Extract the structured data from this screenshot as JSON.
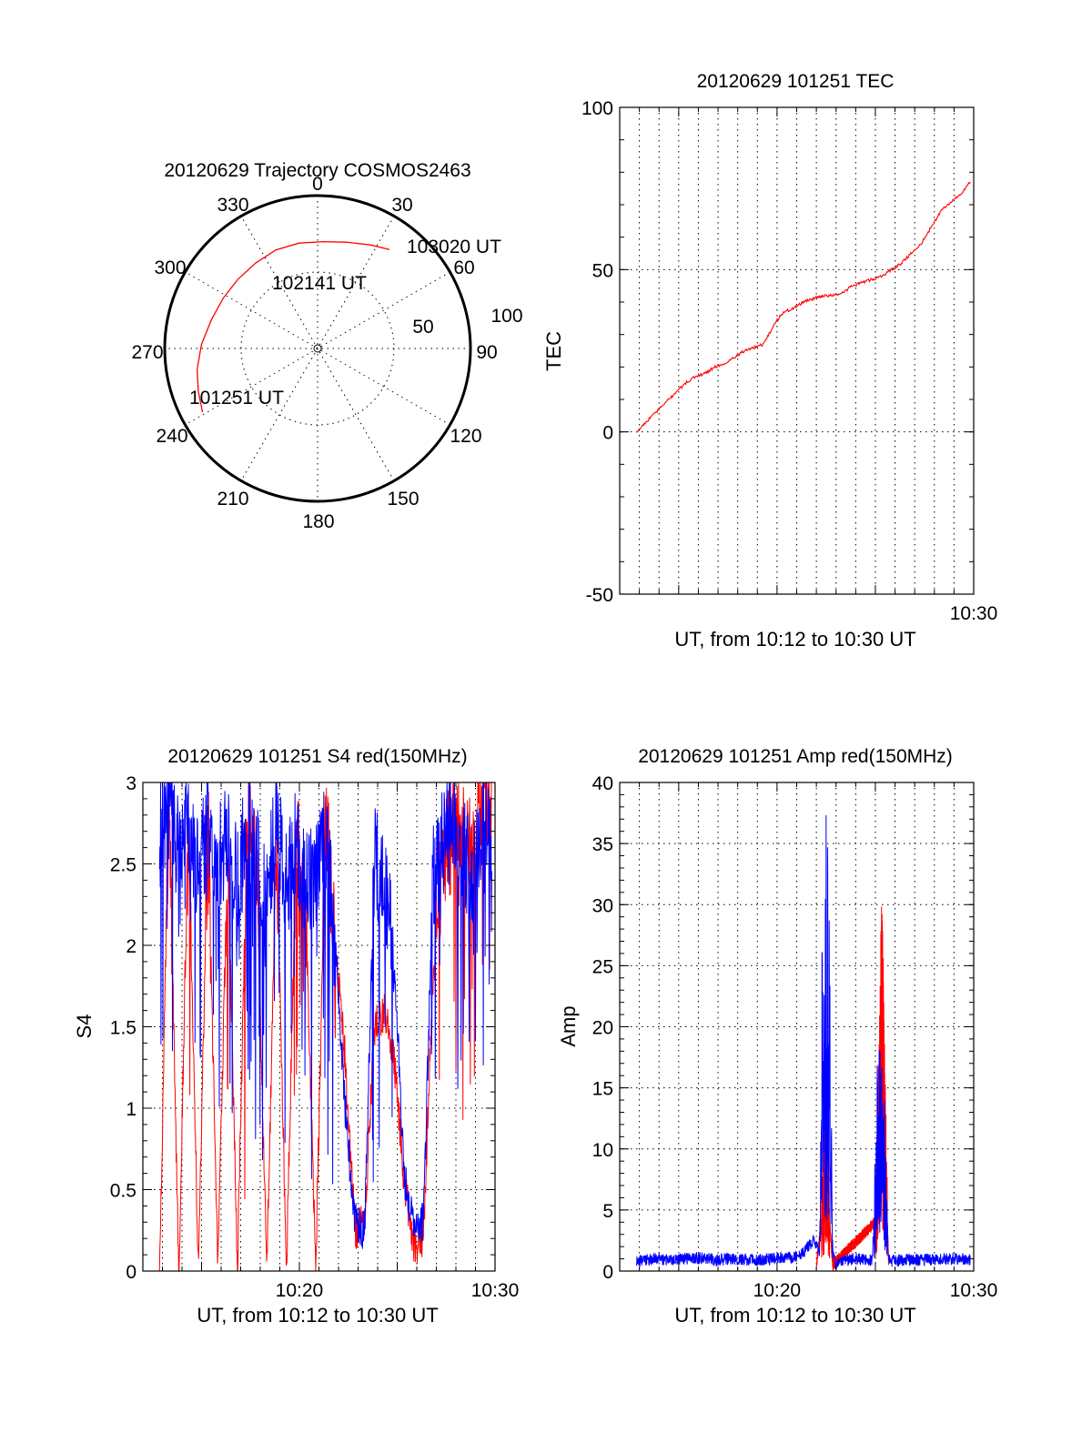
{
  "chart_data": [
    {
      "type": "polar",
      "title": "20120629 Trajectory COSMOS2463",
      "angle_labels": [
        "0",
        "30",
        "60",
        "90",
        "120",
        "150",
        "180",
        "210",
        "240",
        "270",
        "300",
        "330"
      ],
      "radial_labels": [
        "50",
        "100"
      ],
      "radial_max": 100,
      "grid": true,
      "series": [
        {
          "color": "#ff0000",
          "points": [
            {
              "azimuth": 241,
              "radius": 86
            },
            {
              "azimuth": 250,
              "radius": 83
            },
            {
              "azimuth": 260,
              "radius": 80
            },
            {
              "azimuth": 272,
              "radius": 76
            },
            {
              "azimuth": 285,
              "radius": 72
            },
            {
              "azimuth": 298,
              "radius": 70
            },
            {
              "azimuth": 311,
              "radius": 69
            },
            {
              "azimuth": 324,
              "radius": 69
            },
            {
              "azimuth": 337,
              "radius": 70
            },
            {
              "azimuth": 350,
              "radius": 70
            },
            {
              "azimuth": 3,
              "radius": 70
            },
            {
              "azimuth": 15,
              "radius": 72
            },
            {
              "azimuth": 27,
              "radius": 76
            },
            {
              "azimuth": 36,
              "radius": 80
            }
          ]
        }
      ],
      "annotations": [
        {
          "text": "101251 UT",
          "azimuth": 241,
          "radius": 86
        },
        {
          "text": "102141 UT",
          "azimuth": 318,
          "radius": 69
        },
        {
          "text": "103020 UT",
          "azimuth": 36,
          "radius": 80
        }
      ]
    },
    {
      "type": "line",
      "title": "20120629 101251 TEC",
      "xlabel": "UT, from 10:12 to 10:30 UT",
      "ylabel": "TEC",
      "xlim": [
        10.2,
        10.5
      ],
      "ylim": [
        -50,
        100
      ],
      "x_tick_labels": [
        {
          "x": 10.5,
          "label": "10:30"
        }
      ],
      "y_ticks": [
        -50,
        0,
        50,
        100
      ],
      "grid": true,
      "series": [
        {
          "color": "#ff0000",
          "x": [
            10.2142,
            10.2222,
            10.2306,
            10.2389,
            10.2472,
            10.2556,
            10.2639,
            10.2722,
            10.2806,
            10.2889,
            10.2972,
            10.3056,
            10.3139,
            10.3222,
            10.3306,
            10.3389,
            10.3472,
            10.3556,
            10.3639,
            10.3722,
            10.3806,
            10.3889,
            10.3972,
            10.4056,
            10.4139,
            10.4222,
            10.4306,
            10.4389,
            10.4472,
            10.4556,
            10.4639,
            10.4722,
            10.4806,
            10.4889,
            10.4972
          ],
          "y": [
            0,
            3,
            6,
            9,
            12,
            15,
            17,
            18,
            20,
            21,
            23,
            25,
            26,
            27,
            33,
            37,
            38,
            40,
            41,
            42,
            42,
            43,
            45,
            46,
            47,
            48,
            50,
            52,
            55,
            58,
            63,
            68,
            71,
            73,
            77
          ]
        }
      ]
    },
    {
      "type": "line",
      "title": "20120629 101251 S4 red(150MHz)",
      "xlabel": "UT, from 10:12 to 10:30 UT",
      "ylabel": "S4",
      "xlim": [
        10.2,
        10.5
      ],
      "ylim": [
        0,
        3
      ],
      "x_tick_labels": [
        {
          "x": 10.3333,
          "label": "10:20"
        },
        {
          "x": 10.5,
          "label": "10:30"
        }
      ],
      "y_ticks": [
        0,
        0.5,
        1,
        1.5,
        2,
        2.5,
        3
      ],
      "y_tick_labels": [
        "0",
        "0.5",
        "1",
        "1.5",
        "2",
        "2.5",
        "3"
      ],
      "grid": true,
      "series": [
        {
          "color": "#ff0000",
          "x": [
            10.2142,
            10.2222,
            10.2306,
            10.2389,
            10.2472,
            10.2556,
            10.2639,
            10.2722,
            10.2806,
            10.2889,
            10.2972,
            10.3056,
            10.3139,
            10.3222,
            10.3306,
            10.3389,
            10.3472,
            10.3556,
            10.3639,
            10.3722,
            10.3806,
            10.3889,
            10.3972,
            10.4056,
            10.4139,
            10.4222,
            10.4306,
            10.4389,
            10.4472,
            10.4556,
            10.4639,
            10.4722,
            10.4806,
            10.4889,
            10.4972
          ],
          "y": [
            0,
            2.9,
            0,
            2.8,
            0,
            2.7,
            0,
            2.6,
            0,
            2.8,
            2.4,
            0,
            2.7,
            0,
            2.6,
            2.2,
            0,
            2.7,
            2.0,
            1.3,
            0.25,
            0.3,
            1.5,
            1.6,
            1.3,
            0.6,
            0.15,
            0.2,
            1.8,
            2.5,
            2.8,
            2.6,
            2.5,
            2.9,
            2.8
          ]
        },
        {
          "color": "#0000ff",
          "x": [
            10.2142,
            10.2222,
            10.2306,
            10.2389,
            10.2472,
            10.2556,
            10.2639,
            10.2722,
            10.2806,
            10.2889,
            10.2972,
            10.3056,
            10.3139,
            10.3222,
            10.3306,
            10.3389,
            10.3472,
            10.3556,
            10.3639,
            10.3722,
            10.3806,
            10.3889,
            10.3972,
            10.4056,
            10.4139,
            10.4222,
            10.4306,
            10.4389,
            10.4472,
            10.4556,
            10.4639,
            10.4722,
            10.4806,
            10.4889,
            10.4972
          ],
          "y": [
            2.6,
            2.8,
            2.5,
            2.7,
            2.4,
            2.7,
            2.5,
            2.6,
            2.3,
            2.7,
            2.5,
            2.2,
            2.8,
            2.3,
            2.6,
            2.3,
            2.4,
            2.6,
            2.0,
            1.0,
            0.3,
            0.25,
            2.5,
            2.3,
            2.0,
            0.6,
            0.3,
            0.3,
            2.4,
            2.6,
            2.7,
            2.5,
            2.4,
            2.7,
            2.6
          ]
        }
      ]
    },
    {
      "type": "line",
      "title": "20120629 101251 Amp red(150MHz)",
      "xlabel": "UT, from 10:12 to 10:30 UT",
      "ylabel": "Amp",
      "xlim": [
        10.2,
        10.5
      ],
      "ylim": [
        0,
        40
      ],
      "x_tick_labels": [
        {
          "x": 10.3333,
          "label": "10:20"
        },
        {
          "x": 10.5,
          "label": "10:30"
        }
      ],
      "y_ticks": [
        0,
        5,
        10,
        15,
        20,
        25,
        30,
        35,
        40
      ],
      "grid": true,
      "series": [
        {
          "color": "#ff0000",
          "x": [
            10.3667,
            10.3722,
            10.375,
            10.3778,
            10.3806,
            10.4167,
            10.4194,
            10.4222,
            10.425,
            10.4278
          ],
          "y": [
            0.5,
            5,
            10,
            4,
            0.5,
            4,
            10,
            18,
            9,
            1
          ]
        },
        {
          "color": "#0000ff",
          "x": [
            10.2142,
            10.2306,
            10.2472,
            10.2639,
            10.2806,
            10.2972,
            10.3139,
            10.3306,
            10.3472,
            10.3556,
            10.3639,
            10.3694,
            10.3722,
            10.375,
            10.3778,
            10.3806,
            10.3833,
            10.3889,
            10.3972,
            10.4056,
            10.4139,
            10.4167,
            10.4194,
            10.4222,
            10.425,
            10.4278,
            10.4306,
            10.4389,
            10.4556,
            10.4722,
            10.4889,
            10.4972
          ],
          "y": [
            0.8,
            1.0,
            0.9,
            1.1,
            0.9,
            1.0,
            0.9,
            1.0,
            1.1,
            1.5,
            2.5,
            1.5,
            20,
            21,
            18,
            1.5,
            0.5,
            0.8,
            1.0,
            1.0,
            0.9,
            6,
            12,
            11,
            8,
            1.0,
            0.8,
            0.9,
            0.9,
            1.0,
            1.0,
            0.9
          ]
        }
      ]
    }
  ]
}
